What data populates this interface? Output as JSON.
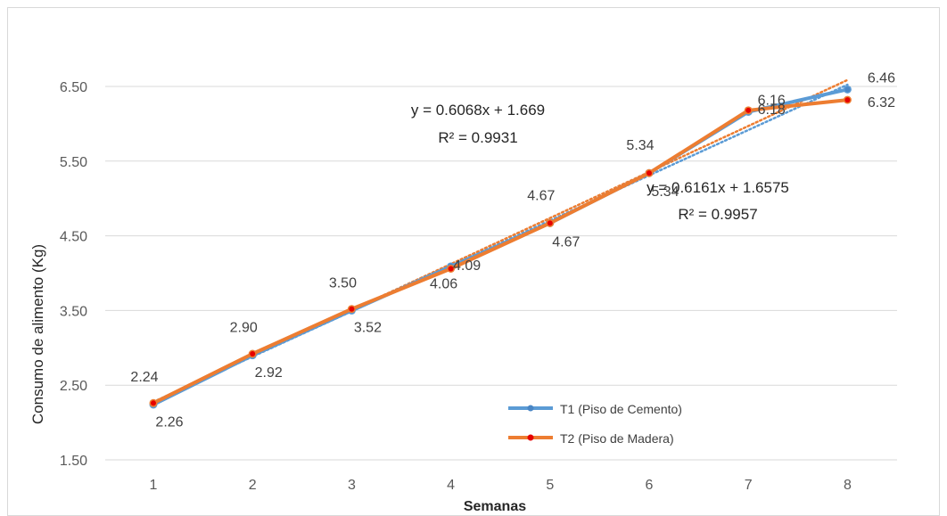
{
  "chart_data": {
    "type": "line",
    "xlabel": "Semanas",
    "ylabel": "Consumo de alimento (Kg)",
    "x": [
      1,
      2,
      3,
      4,
      5,
      6,
      7,
      8
    ],
    "ylim": [
      1.5,
      6.5
    ],
    "yticks": [
      "1.50",
      "2.50",
      "3.50",
      "4.50",
      "5.50",
      "6.50"
    ],
    "grid": true,
    "legend_position": "bottom-center",
    "series": [
      {
        "name": "T1 (Piso de Cemento)",
        "color": "#5b9bd5",
        "values": [
          2.24,
          2.9,
          3.5,
          4.09,
          4.67,
          5.34,
          6.16,
          6.46
        ],
        "labels": [
          "2.24",
          "2.90",
          "3.50",
          "4.09",
          "4.67",
          "5.34",
          "6.16",
          "6.46"
        ],
        "trendline": {
          "slope": 0.6068,
          "intercept": 1.669,
          "equation": "y = 0.6068x + 1.669",
          "r2": "R² = 0.9931"
        }
      },
      {
        "name": "T2 (Piso de Madera)",
        "color": "#ed7d31",
        "values": [
          2.26,
          2.92,
          3.52,
          4.06,
          4.67,
          5.34,
          6.18,
          6.32
        ],
        "labels": [
          "2.26",
          "2.92",
          "3.52",
          "4.06",
          "4.67",
          "5.34",
          "6.18",
          "6.32"
        ],
        "trendline": {
          "slope": 0.6161,
          "intercept": 1.6575,
          "equation": "y = 0.6161x + 1.6575",
          "r2": "R² = 0.9957"
        }
      }
    ]
  }
}
